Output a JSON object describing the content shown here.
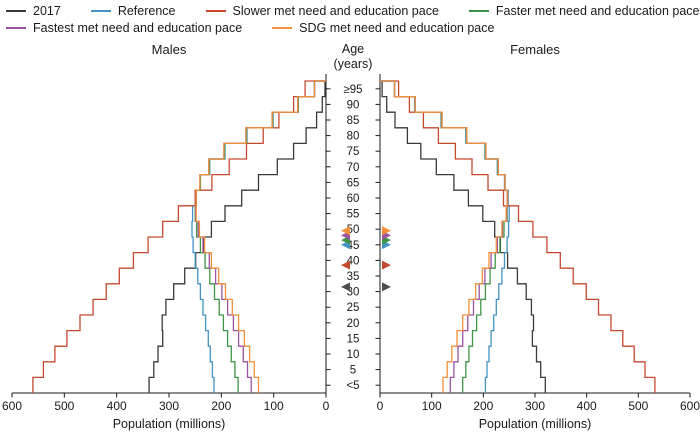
{
  "figure": {
    "legend_rows": [
      [
        {
          "label": "2017",
          "color": "#3a3a3a"
        },
        {
          "label": "Reference",
          "color": "#4393c3"
        },
        {
          "label": "Slower met need and education pace",
          "color": "#c6492f"
        },
        {
          "label": "Faster met need and education pace",
          "color": "#3f9547"
        }
      ],
      [
        {
          "label": "Fastest met need and education pace",
          "color": "#9c53a0"
        },
        {
          "label": "SDG met need and education pace",
          "color": "#f0913a"
        }
      ]
    ]
  },
  "chart_data": {
    "type": "line",
    "variant": "population-pyramid-step",
    "left_panel_title": "Males",
    "right_panel_title": "Females",
    "age_axis_title_line1": "Age",
    "age_axis_title_line2": "(years)",
    "xlabel": "Population (millions)",
    "xmax": 600,
    "x_ticks_left": [
      600,
      500,
      400,
      300,
      200,
      100,
      0
    ],
    "x_ticks_right": [
      0,
      100,
      200,
      300,
      400,
      500,
      600
    ],
    "age_groups": [
      "<5",
      "5",
      "10",
      "15",
      "20",
      "25",
      "30",
      "35",
      "40",
      "45",
      "50",
      "55",
      "60",
      "65",
      "70",
      "75",
      "80",
      "85",
      "90",
      "≥95"
    ],
    "series": [
      {
        "name": "2017",
        "color": "#3a3a3a",
        "males": [
          338,
          329,
          321,
          312,
          313,
          306,
          291,
          270,
          249,
          233,
          219,
          193,
          161,
          129,
          93,
          62,
          38,
          18,
          7,
          2
        ],
        "females": [
          320,
          311,
          303,
          295,
          297,
          293,
          283,
          266,
          247,
          233,
          222,
          199,
          171,
          143,
          109,
          79,
          53,
          29,
          13,
          4
        ]
      },
      {
        "name": "Reference",
        "color": "#4393c3",
        "males": [
          214,
          217,
          221,
          225,
          230,
          235,
          240,
          245,
          250,
          254,
          256,
          255,
          250,
          240,
          222,
          193,
          151,
          101,
          53,
          22
        ],
        "females": [
          204,
          207,
          211,
          215,
          220,
          225,
          230,
          236,
          241,
          246,
          249,
          250,
          248,
          241,
          227,
          203,
          166,
          118,
          67,
          28
        ]
      },
      {
        "name": "Slower met need and education pace",
        "color": "#c6492f",
        "males": [
          560,
          540,
          518,
          495,
          470,
          445,
          420,
          395,
          368,
          340,
          312,
          282,
          250,
          218,
          185,
          152,
          120,
          90,
          62,
          40
        ],
        "females": [
          532,
          513,
          492,
          470,
          447,
          423,
          399,
          374,
          349,
          323,
          296,
          268,
          239,
          209,
          178,
          146,
          113,
          84,
          57,
          36
        ]
      },
      {
        "name": "Faster met need and education pace",
        "color": "#3f9547",
        "males": [
          168,
          174,
          181,
          188,
          196,
          204,
          213,
          222,
          231,
          240,
          247,
          250,
          248,
          240,
          223,
          194,
          152,
          102,
          53,
          22
        ],
        "females": [
          160,
          166,
          172,
          179,
          187,
          195,
          204,
          213,
          223,
          232,
          240,
          246,
          247,
          242,
          228,
          204,
          167,
          119,
          68,
          28
        ]
      },
      {
        "name": "Fastest met need and education pace",
        "color": "#9c53a0",
        "males": [
          143,
          150,
          158,
          167,
          177,
          188,
          199,
          211,
          223,
          235,
          244,
          249,
          248,
          241,
          224,
          195,
          153,
          103,
          54,
          22
        ],
        "females": [
          136,
          143,
          151,
          160,
          170,
          181,
          192,
          203,
          215,
          227,
          237,
          245,
          247,
          242,
          229,
          205,
          168,
          120,
          68,
          28
        ]
      },
      {
        "name": "SDG met need and education pace",
        "color": "#f0913a",
        "males": [
          129,
          137,
          146,
          156,
          167,
          179,
          192,
          205,
          219,
          232,
          242,
          248,
          248,
          241,
          224,
          195,
          153,
          103,
          54,
          22
        ],
        "females": [
          122,
          130,
          139,
          149,
          160,
          172,
          185,
          198,
          211,
          225,
          236,
          244,
          246,
          242,
          229,
          205,
          168,
          120,
          68,
          28
        ]
      }
    ],
    "markers": [
      {
        "series": "2017",
        "age": 34,
        "color": "#4d4d4d"
      },
      {
        "series": "Slower met need and education pace",
        "age": 41,
        "color": "#c6492f"
      },
      {
        "series": "Reference",
        "age": 47.5,
        "color": "#4393c3"
      },
      {
        "series": "Faster met need and education pace",
        "age": 49,
        "color": "#3f9547"
      },
      {
        "series": "Fastest met need and education pace",
        "age": 50.5,
        "color": "#9c53a0"
      },
      {
        "series": "SDG met need and education pace",
        "age": 52,
        "color": "#f0913a"
      }
    ]
  }
}
